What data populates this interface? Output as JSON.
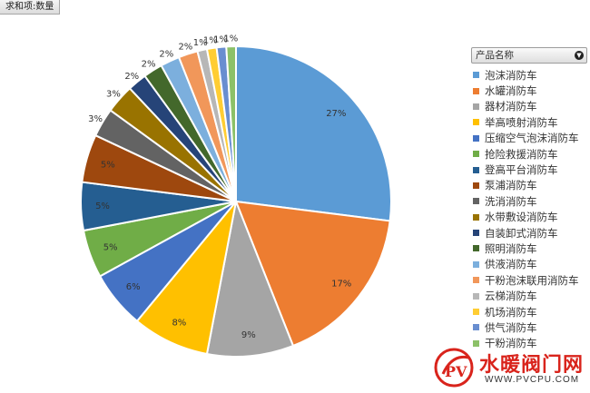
{
  "field_buttons": {
    "values_label": "求和项:数量",
    "category_label": "产品名称",
    "dropdown_glyph": "▼"
  },
  "chart_data": {
    "type": "pie",
    "legend_position": "right",
    "slices": [
      {
        "name": "泡沫消防车",
        "value": 27,
        "label": "27%",
        "color": "#5b9bd5"
      },
      {
        "name": "水罐消防车",
        "value": 17,
        "label": "17%",
        "color": "#ed7d31"
      },
      {
        "name": "器材消防车",
        "value": 9,
        "label": "9%",
        "color": "#a5a5a5"
      },
      {
        "name": "举高喷射消防车",
        "value": 8,
        "label": "8%",
        "color": "#ffc000"
      },
      {
        "name": "压缩空气泡沫消防车",
        "value": 6,
        "label": "6%",
        "color": "#4472c4"
      },
      {
        "name": "抢险救援消防车",
        "value": 5,
        "label": "5%",
        "color": "#70ad47"
      },
      {
        "name": "登高平台消防车",
        "value": 5,
        "label": "5%",
        "color": "#255e91"
      },
      {
        "name": "泵浦消防车",
        "value": 5,
        "label": "5%",
        "color": "#9e480e"
      },
      {
        "name": "洗消消防车",
        "value": 3,
        "label": "3%",
        "color": "#636363"
      },
      {
        "name": "水带敷设消防车",
        "value": 3,
        "label": "3%",
        "color": "#997300"
      },
      {
        "name": "自装卸式消防车",
        "value": 2,
        "label": "2%",
        "color": "#264478"
      },
      {
        "name": "照明消防车",
        "value": 2,
        "label": "2%",
        "color": "#43682b"
      },
      {
        "name": "供液消防车",
        "value": 2,
        "label": "2%",
        "color": "#7cafdd"
      },
      {
        "name": "干粉泡沫联用消防车",
        "value": 2,
        "label": "2%",
        "color": "#f1975a"
      },
      {
        "name": "云梯消防车",
        "value": 1,
        "label": "1%",
        "color": "#b7b7b7"
      },
      {
        "name": "机场消防车",
        "value": 1,
        "label": "1%",
        "color": "#ffcd33"
      },
      {
        "name": "供气消防车",
        "value": 1,
        "label": "1%",
        "color": "#698ed0"
      },
      {
        "name": "干粉消防车",
        "value": 1,
        "label": "1%",
        "color": "#8cc168"
      }
    ]
  },
  "watermark": {
    "title": "水暖阀门网",
    "url": "WWW.PVCPU.COM",
    "logo_letter": "PV",
    "logo_color": "#d9241c"
  }
}
